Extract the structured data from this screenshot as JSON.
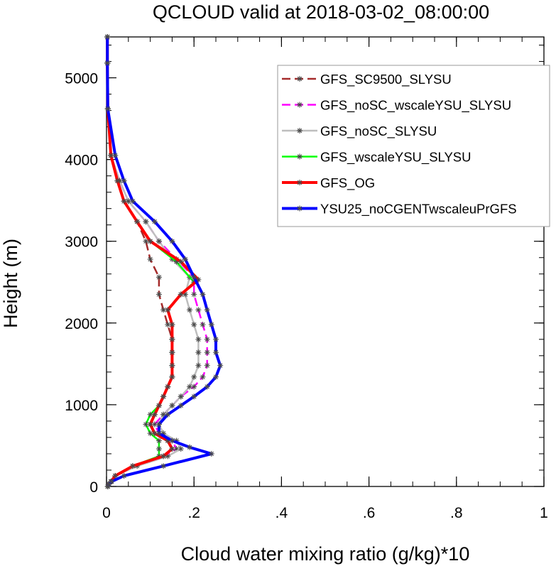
{
  "chart_data": {
    "type": "line",
    "title": "QCLOUD valid at 2018-03-02_08:00:00",
    "xlabel": "Cloud water mixing ratio (g/kg)*10",
    "ylabel": "Height (m)",
    "xlim": [
      0,
      1
    ],
    "ylim": [
      0,
      5500
    ],
    "x_ticks": [
      0,
      0.2,
      0.4,
      0.6,
      0.8,
      1
    ],
    "x_tick_labels": [
      "0",
      ".2",
      ".4",
      ".6",
      ".8",
      "1"
    ],
    "y_ticks": [
      0,
      1000,
      2000,
      3000,
      4000,
      5000
    ],
    "y_tick_labels": [
      "0",
      "1000",
      "2000",
      "3000",
      "4000",
      "5000"
    ],
    "grid": false,
    "legend_position": "top-right",
    "series": [
      {
        "name": "GFS_SC9500_SLYSU",
        "color": "#a52a2a",
        "dash": "dashed",
        "width": 2.5,
        "points": [
          [
            0.003,
            0
          ],
          [
            0.005,
            30
          ],
          [
            0.01,
            60
          ],
          [
            0.02,
            130
          ],
          [
            0.06,
            250
          ],
          [
            0.13,
            370
          ],
          [
            0.15,
            460
          ],
          [
            0.14,
            560
          ],
          [
            0.11,
            650
          ],
          [
            0.1,
            760
          ],
          [
            0.11,
            880
          ],
          [
            0.12,
            990
          ],
          [
            0.13,
            1100
          ],
          [
            0.14,
            1220
          ],
          [
            0.15,
            1340
          ],
          [
            0.15,
            1480
          ],
          [
            0.15,
            1640
          ],
          [
            0.15,
            1800
          ],
          [
            0.14,
            1980
          ],
          [
            0.13,
            2160
          ],
          [
            0.12,
            2350
          ],
          [
            0.12,
            2560
          ],
          [
            0.1,
            2780
          ],
          [
            0.09,
            3000
          ],
          [
            0.07,
            3240
          ],
          [
            0.04,
            3490
          ],
          [
            0.025,
            3740
          ],
          [
            0.01,
            4050
          ],
          [
            0.003,
            4620
          ],
          [
            0.002,
            5180
          ],
          [
            0.002,
            5500
          ]
        ]
      },
      {
        "name": "GFS_noSC_wscaleYSU_SLYSU",
        "color": "#ff00ff",
        "dash": "dashed",
        "width": 2.5,
        "points": [
          [
            0.003,
            0
          ],
          [
            0.005,
            30
          ],
          [
            0.01,
            60
          ],
          [
            0.02,
            130
          ],
          [
            0.06,
            250
          ],
          [
            0.13,
            370
          ],
          [
            0.16,
            460
          ],
          [
            0.15,
            560
          ],
          [
            0.12,
            650
          ],
          [
            0.11,
            760
          ],
          [
            0.13,
            880
          ],
          [
            0.15,
            990
          ],
          [
            0.17,
            1100
          ],
          [
            0.2,
            1220
          ],
          [
            0.22,
            1340
          ],
          [
            0.23,
            1480
          ],
          [
            0.23,
            1640
          ],
          [
            0.23,
            1800
          ],
          [
            0.22,
            1980
          ],
          [
            0.21,
            2160
          ],
          [
            0.2,
            2350
          ],
          [
            0.2,
            2560
          ],
          [
            0.16,
            2780
          ],
          [
            0.12,
            3000
          ],
          [
            0.09,
            3240
          ],
          [
            0.05,
            3490
          ],
          [
            0.03,
            3740
          ],
          [
            0.01,
            4050
          ],
          [
            0.003,
            4620
          ],
          [
            0.002,
            5180
          ],
          [
            0.002,
            5500
          ]
        ]
      },
      {
        "name": "GFS_noSC_SLYSU",
        "color": "#bebebe",
        "dash": "solid",
        "width": 2.5,
        "points": [
          [
            0.003,
            0
          ],
          [
            0.005,
            30
          ],
          [
            0.01,
            60
          ],
          [
            0.02,
            130
          ],
          [
            0.07,
            250
          ],
          [
            0.14,
            370
          ],
          [
            0.17,
            460
          ],
          [
            0.16,
            560
          ],
          [
            0.13,
            650
          ],
          [
            0.12,
            760
          ],
          [
            0.13,
            880
          ],
          [
            0.15,
            990
          ],
          [
            0.17,
            1100
          ],
          [
            0.19,
            1220
          ],
          [
            0.2,
            1340
          ],
          [
            0.21,
            1480
          ],
          [
            0.21,
            1640
          ],
          [
            0.21,
            1800
          ],
          [
            0.2,
            1980
          ],
          [
            0.19,
            2160
          ],
          [
            0.18,
            2350
          ],
          [
            0.19,
            2560
          ],
          [
            0.15,
            2780
          ],
          [
            0.12,
            3000
          ],
          [
            0.09,
            3240
          ],
          [
            0.05,
            3490
          ],
          [
            0.03,
            3740
          ],
          [
            0.01,
            4050
          ],
          [
            0.003,
            4620
          ],
          [
            0.002,
            5180
          ],
          [
            0.002,
            5500
          ]
        ]
      },
      {
        "name": "GFS_wscaleYSU_SLYSU",
        "color": "#00ff00",
        "dash": "solid",
        "width": 2.5,
        "points": [
          [
            0.003,
            0
          ],
          [
            0.005,
            30
          ],
          [
            0.01,
            60
          ],
          [
            0.02,
            130
          ],
          [
            0.06,
            250
          ],
          [
            0.12,
            370
          ],
          [
            0.12,
            460
          ],
          [
            0.12,
            560
          ],
          [
            0.1,
            650
          ],
          [
            0.09,
            760
          ],
          [
            0.1,
            880
          ],
          [
            0.12,
            990
          ],
          [
            0.13,
            1100
          ],
          [
            0.14,
            1220
          ],
          [
            0.15,
            1340
          ],
          [
            0.15,
            1480
          ],
          [
            0.15,
            1640
          ],
          [
            0.15,
            1800
          ],
          [
            0.15,
            1980
          ],
          [
            0.14,
            2160
          ],
          [
            0.17,
            2350
          ],
          [
            0.2,
            2500
          ],
          [
            0.16,
            2750
          ],
          [
            0.1,
            3000
          ],
          [
            0.07,
            3240
          ],
          [
            0.04,
            3490
          ],
          [
            0.025,
            3740
          ],
          [
            0.01,
            4050
          ],
          [
            0.003,
            4620
          ],
          [
            0.002,
            5180
          ],
          [
            0.002,
            5500
          ]
        ]
      },
      {
        "name": "GFS_OG",
        "color": "#ff0000",
        "dash": "solid",
        "width": 4,
        "points": [
          [
            0.003,
            0
          ],
          [
            0.005,
            30
          ],
          [
            0.01,
            60
          ],
          [
            0.02,
            130
          ],
          [
            0.06,
            250
          ],
          [
            0.13,
            370
          ],
          [
            0.15,
            460
          ],
          [
            0.14,
            560
          ],
          [
            0.11,
            650
          ],
          [
            0.1,
            760
          ],
          [
            0.11,
            880
          ],
          [
            0.12,
            990
          ],
          [
            0.13,
            1100
          ],
          [
            0.14,
            1220
          ],
          [
            0.15,
            1340
          ],
          [
            0.15,
            1480
          ],
          [
            0.15,
            1640
          ],
          [
            0.15,
            1800
          ],
          [
            0.15,
            1980
          ],
          [
            0.14,
            2160
          ],
          [
            0.17,
            2350
          ],
          [
            0.21,
            2530
          ],
          [
            0.17,
            2750
          ],
          [
            0.1,
            3000
          ],
          [
            0.07,
            3240
          ],
          [
            0.04,
            3490
          ],
          [
            0.025,
            3740
          ],
          [
            0.01,
            4050
          ],
          [
            0.003,
            4620
          ],
          [
            0.002,
            5180
          ],
          [
            0.002,
            5500
          ]
        ]
      },
      {
        "name": "YSU25_noCGENTwscaleuPrGFS",
        "color": "#0000ff",
        "dash": "solid",
        "width": 4,
        "points": [
          [
            0.003,
            0
          ],
          [
            0.006,
            30
          ],
          [
            0.012,
            60
          ],
          [
            0.04,
            130
          ],
          [
            0.13,
            250
          ],
          [
            0.24,
            400
          ],
          [
            0.19,
            480
          ],
          [
            0.15,
            560
          ],
          [
            0.12,
            650
          ],
          [
            0.12,
            760
          ],
          [
            0.14,
            880
          ],
          [
            0.17,
            990
          ],
          [
            0.2,
            1100
          ],
          [
            0.23,
            1220
          ],
          [
            0.25,
            1340
          ],
          [
            0.26,
            1480
          ],
          [
            0.25,
            1640
          ],
          [
            0.25,
            1800
          ],
          [
            0.24,
            1980
          ],
          [
            0.23,
            2160
          ],
          [
            0.22,
            2350
          ],
          [
            0.2,
            2560
          ],
          [
            0.18,
            2780
          ],
          [
            0.15,
            3000
          ],
          [
            0.11,
            3240
          ],
          [
            0.06,
            3490
          ],
          [
            0.04,
            3740
          ],
          [
            0.02,
            4050
          ],
          [
            0.003,
            4620
          ],
          [
            0.002,
            5180
          ],
          [
            0.002,
            5500
          ]
        ]
      }
    ]
  }
}
